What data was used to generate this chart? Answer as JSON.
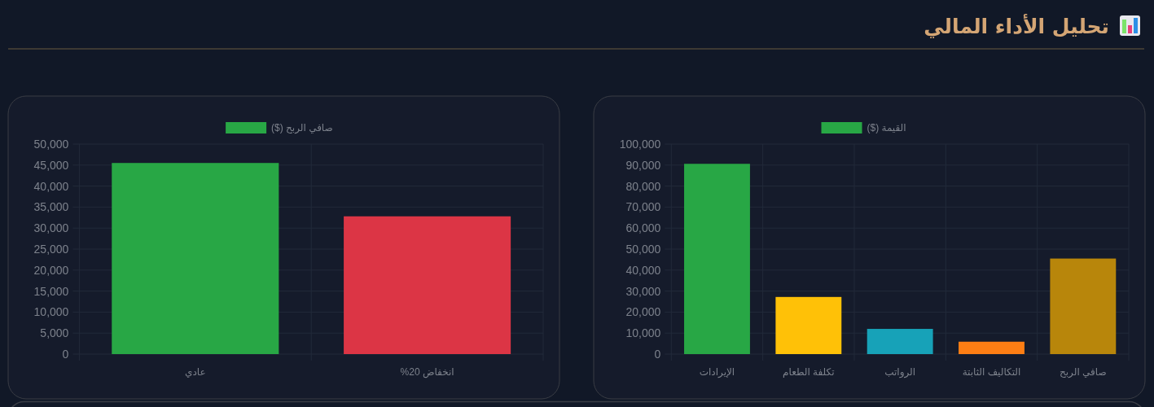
{
  "chart_data": [
    {
      "type": "bar",
      "title": "تحليل الأداء المالي",
      "categories": [
        "الإيرادات",
        "تكلفة الطعام",
        "الرواتب",
        "التكاليف الثابتة",
        "صافي الربح"
      ],
      "series": [
        {
          "name": "القيمة ($)",
          "color": "#28a745",
          "colors": [
            "#28a745",
            "#ffc107",
            "#17a2b8",
            "#fd7e14",
            "#b8860b"
          ],
          "values": [
            90600,
            27200,
            12000,
            5900,
            45500
          ]
        }
      ],
      "ylim": [
        0,
        100000
      ],
      "yticks": [
        0,
        {
          "value": 10000,
          "label": "10,000"
        },
        {
          "value": 20000,
          "label": "20,000"
        },
        {
          "value": 30000,
          "label": "30,000"
        },
        {
          "value": 40000,
          "label": "40,000"
        },
        {
          "value": 50000,
          "label": "50,000"
        },
        {
          "value": 60000,
          "label": "60,000"
        },
        {
          "value": 70000,
          "label": "70,000"
        },
        {
          "value": 80000,
          "label": "80,000"
        },
        {
          "value": 90000,
          "label": "90,000"
        },
        {
          "value": 100000,
          "label": "100,000"
        }
      ],
      "grid": true,
      "legend": "top"
    },
    {
      "type": "bar",
      "categories": [
        "عادي",
        "انخفاض 20%"
      ],
      "series": [
        {
          "name": "صافي الربح ($)",
          "color": "#28a745",
          "colors": [
            "#28a745",
            "#dc3545"
          ],
          "values": [
            45500,
            32800
          ]
        }
      ],
      "ylim": [
        0,
        50000
      ],
      "yticks": [
        0,
        {
          "value": 5000,
          "label": "5,000"
        },
        {
          "value": 10000,
          "label": "10,000"
        },
        {
          "value": 15000,
          "label": "15,000"
        },
        {
          "value": 20000,
          "label": "20,000"
        },
        {
          "value": 25000,
          "label": "25,000"
        },
        {
          "value": 30000,
          "label": "30,000"
        },
        {
          "value": 35000,
          "label": "35,000"
        },
        {
          "value": 40000,
          "label": "40,000"
        },
        {
          "value": 45000,
          "label": "45,000"
        },
        {
          "value": 50000,
          "label": "50,000"
        }
      ],
      "grid": true,
      "legend": "top"
    }
  ]
}
